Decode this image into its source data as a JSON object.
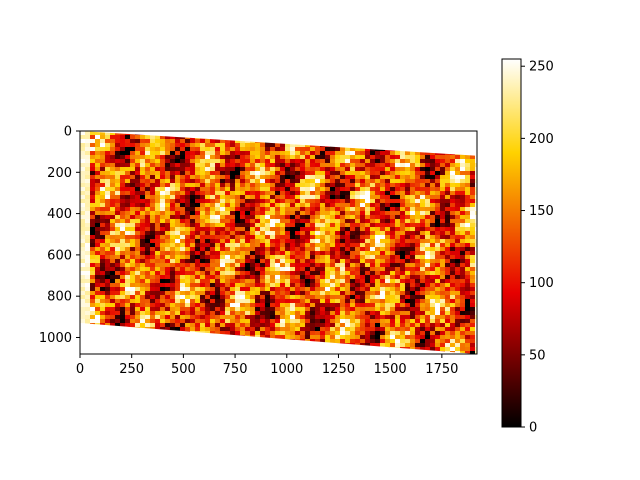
{
  "chart_data": {
    "type": "heatmap",
    "title": "",
    "xlabel": "",
    "ylabel": "",
    "image_size": {
      "width": 1920,
      "height": 1080
    },
    "xlim": [
      0,
      1920
    ],
    "ylim": [
      1080,
      0
    ],
    "x_ticks": [
      0,
      250,
      500,
      750,
      1000,
      1250,
      1500,
      1750
    ],
    "y_ticks": [
      0,
      200,
      400,
      600,
      800,
      1000
    ],
    "colormap": "hot",
    "colormap_stops": [
      "#000000",
      "#e60000",
      "#ffd200",
      "#ffffff"
    ],
    "colorbar": {
      "range": [
        0,
        255
      ],
      "ticks": [
        0,
        50,
        100,
        150,
        200,
        250
      ]
    },
    "warped_content_corners": [
      [
        0,
        0
      ],
      [
        1920,
        120
      ],
      [
        1920,
        1080
      ],
      [
        0,
        930
      ]
    ],
    "background_color": "#ffffff"
  }
}
